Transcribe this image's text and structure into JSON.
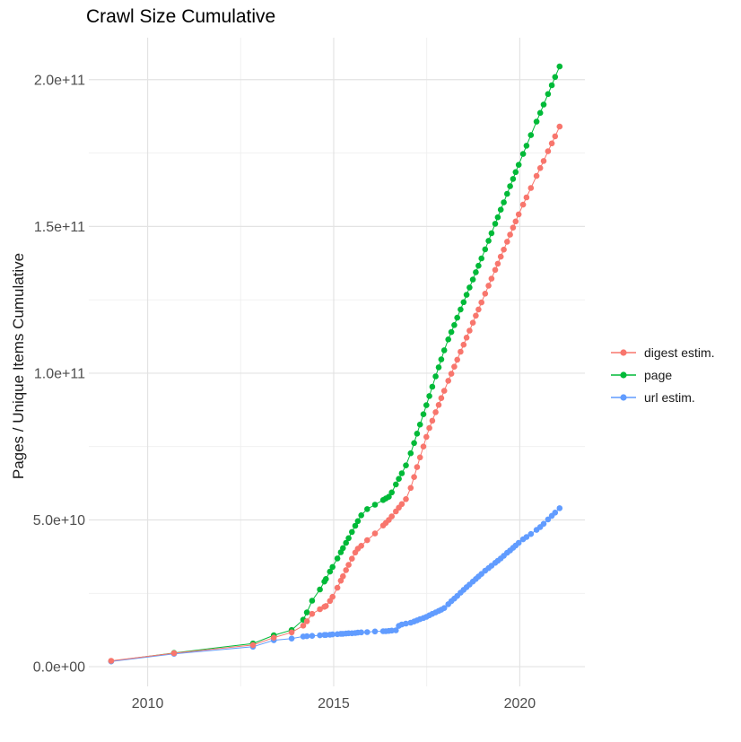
{
  "title": "Crawl Size Cumulative",
  "axes": {
    "y_title": "Pages / Unique Items Cumulative",
    "y_ticks": [
      {
        "label": "0.0e+00",
        "value": 0
      },
      {
        "label": "5.0e+10",
        "value": 50
      },
      {
        "label": "1.0e+11",
        "value": 100
      },
      {
        "label": "1.5e+11",
        "value": 150
      },
      {
        "label": "2.0e+11",
        "value": 200
      }
    ],
    "y_minor": [
      25,
      75,
      125,
      175
    ],
    "x_ticks": [
      {
        "label": "2010",
        "value": 2010
      },
      {
        "label": "2015",
        "value": 2015
      },
      {
        "label": "2020",
        "value": 2020
      }
    ],
    "x_minor": [
      2012.5,
      2017.5
    ]
  },
  "legend": {
    "items": [
      {
        "label": "digest estim.",
        "color": "#F8766D"
      },
      {
        "label": "page",
        "color": "#00BA38"
      },
      {
        "label": "url estim.",
        "color": "#619CFF"
      }
    ]
  },
  "chart_data": {
    "type": "line",
    "marker": "point",
    "title": "Crawl Size Cumulative",
    "xlabel": "",
    "ylabel": "Pages / Unique Items Cumulative",
    "x_unit": "year (decimal)",
    "value_unit": "items × 1e9",
    "xlim": [
      2008.42,
      2021.75
    ],
    "ylim": [
      -6.7,
      214.3
    ],
    "grid": true,
    "legend_position": "right",
    "series": [
      {
        "name": "digest estim.",
        "color": "#F8766D",
        "points": [
          [
            2009.02,
            2.0
          ],
          [
            2010.71,
            4.6
          ],
          [
            2012.83,
            7.4
          ],
          [
            2013.39,
            9.9
          ],
          [
            2013.87,
            11.7
          ],
          [
            2014.18,
            14.0
          ],
          [
            2014.28,
            15.5
          ],
          [
            2014.42,
            18.0
          ],
          [
            2014.63,
            19.6
          ],
          [
            2014.75,
            20.4
          ],
          [
            2014.79,
            20.7
          ],
          [
            2014.9,
            22.4
          ],
          [
            2014.97,
            23.8
          ],
          [
            2015.1,
            26.9
          ],
          [
            2015.19,
            29.3
          ],
          [
            2015.25,
            30.8
          ],
          [
            2015.33,
            32.9
          ],
          [
            2015.4,
            34.7
          ],
          [
            2015.49,
            36.8
          ],
          [
            2015.58,
            38.9
          ],
          [
            2015.65,
            40.2
          ],
          [
            2015.74,
            41.2
          ],
          [
            2015.9,
            43.1
          ],
          [
            2016.11,
            45.4
          ],
          [
            2016.33,
            48.1
          ],
          [
            2016.4,
            49.0
          ],
          [
            2016.48,
            50.0
          ],
          [
            2016.56,
            51.2
          ],
          [
            2016.67,
            52.9
          ],
          [
            2016.75,
            54.2
          ],
          [
            2016.83,
            55.4
          ],
          [
            2016.94,
            57.1
          ],
          [
            2017.07,
            60.9
          ],
          [
            2017.16,
            64.6
          ],
          [
            2017.24,
            68.0
          ],
          [
            2017.32,
            71.3
          ],
          [
            2017.41,
            75.0
          ],
          [
            2017.49,
            78.3
          ],
          [
            2017.57,
            81.3
          ],
          [
            2017.65,
            83.8
          ],
          [
            2017.74,
            86.7
          ],
          [
            2017.82,
            89.2
          ],
          [
            2017.89,
            91.5
          ],
          [
            2017.97,
            94.0
          ],
          [
            2018.08,
            97.4
          ],
          [
            2018.16,
            99.8
          ],
          [
            2018.24,
            102.2
          ],
          [
            2018.32,
            104.6
          ],
          [
            2018.41,
            107.3
          ],
          [
            2018.49,
            109.7
          ],
          [
            2018.57,
            112.1
          ],
          [
            2018.65,
            114.5
          ],
          [
            2018.74,
            117.2
          ],
          [
            2018.82,
            119.6
          ],
          [
            2018.89,
            121.7
          ],
          [
            2018.97,
            124.1
          ],
          [
            2019.07,
            127.1
          ],
          [
            2019.16,
            129.8
          ],
          [
            2019.24,
            132.2
          ],
          [
            2019.34,
            135.2
          ],
          [
            2019.41,
            137.3
          ],
          [
            2019.49,
            139.7
          ],
          [
            2019.57,
            142.1
          ],
          [
            2019.66,
            144.8
          ],
          [
            2019.74,
            147.2
          ],
          [
            2019.82,
            149.6
          ],
          [
            2019.89,
            151.7
          ],
          [
            2019.97,
            154.1
          ],
          [
            2020.09,
            157.4
          ],
          [
            2020.18,
            159.9
          ],
          [
            2020.3,
            163.1
          ],
          [
            2020.45,
            167.2
          ],
          [
            2020.55,
            169.9
          ],
          [
            2020.64,
            172.3
          ],
          [
            2020.76,
            175.6
          ],
          [
            2020.86,
            178.3
          ],
          [
            2020.95,
            180.7
          ],
          [
            2021.07,
            184.0
          ]
        ]
      },
      {
        "name": "page",
        "color": "#00BA38",
        "points": [
          [
            2009.02,
            1.9
          ],
          [
            2010.71,
            4.7
          ],
          [
            2012.83,
            7.9
          ],
          [
            2013.39,
            10.7
          ],
          [
            2013.87,
            12.5
          ],
          [
            2014.18,
            16.0
          ],
          [
            2014.28,
            18.5
          ],
          [
            2014.42,
            22.5
          ],
          [
            2014.63,
            26.3
          ],
          [
            2014.75,
            29.0
          ],
          [
            2014.79,
            29.9
          ],
          [
            2014.9,
            32.4
          ],
          [
            2014.97,
            34.0
          ],
          [
            2015.1,
            36.9
          ],
          [
            2015.19,
            39.0
          ],
          [
            2015.25,
            40.4
          ],
          [
            2015.33,
            42.2
          ],
          [
            2015.4,
            43.8
          ],
          [
            2015.49,
            45.9
          ],
          [
            2015.58,
            48.0
          ],
          [
            2015.65,
            49.6
          ],
          [
            2015.74,
            51.6
          ],
          [
            2015.9,
            53.7
          ],
          [
            2016.11,
            55.2
          ],
          [
            2016.33,
            56.8
          ],
          [
            2016.4,
            57.3
          ],
          [
            2016.48,
            57.9
          ],
          [
            2016.56,
            59.4
          ],
          [
            2016.67,
            62.1
          ],
          [
            2016.75,
            64.0
          ],
          [
            2016.83,
            65.9
          ],
          [
            2016.94,
            68.6
          ],
          [
            2017.07,
            72.7
          ],
          [
            2017.16,
            76.2
          ],
          [
            2017.24,
            79.4
          ],
          [
            2017.32,
            82.5
          ],
          [
            2017.41,
            86.0
          ],
          [
            2017.49,
            89.1
          ],
          [
            2017.57,
            92.2
          ],
          [
            2017.65,
            95.4
          ],
          [
            2017.74,
            98.9
          ],
          [
            2017.82,
            102.0
          ],
          [
            2017.89,
            104.7
          ],
          [
            2017.97,
            107.8
          ],
          [
            2018.08,
            111.5
          ],
          [
            2018.16,
            114.0
          ],
          [
            2018.24,
            116.4
          ],
          [
            2018.32,
            118.9
          ],
          [
            2018.41,
            121.7
          ],
          [
            2018.49,
            124.2
          ],
          [
            2018.57,
            126.7
          ],
          [
            2018.65,
            129.2
          ],
          [
            2018.74,
            131.9
          ],
          [
            2018.82,
            134.4
          ],
          [
            2018.89,
            136.6
          ],
          [
            2018.97,
            139.1
          ],
          [
            2019.07,
            142.2
          ],
          [
            2019.16,
            145.1
          ],
          [
            2019.24,
            147.7
          ],
          [
            2019.34,
            150.9
          ],
          [
            2019.41,
            153.1
          ],
          [
            2019.49,
            155.7
          ],
          [
            2019.57,
            158.2
          ],
          [
            2019.66,
            161.1
          ],
          [
            2019.74,
            163.7
          ],
          [
            2019.82,
            166.2
          ],
          [
            2019.89,
            168.5
          ],
          [
            2019.97,
            171.0
          ],
          [
            2020.09,
            174.7
          ],
          [
            2020.18,
            177.5
          ],
          [
            2020.3,
            181.1
          ],
          [
            2020.45,
            185.7
          ],
          [
            2020.55,
            188.7
          ],
          [
            2020.64,
            191.5
          ],
          [
            2020.76,
            195.1
          ],
          [
            2020.86,
            198.1
          ],
          [
            2020.95,
            200.9
          ],
          [
            2021.07,
            204.5
          ]
        ]
      },
      {
        "name": "url estim.",
        "color": "#619CFF",
        "points": [
          [
            2009.02,
            1.8
          ],
          [
            2010.71,
            4.4
          ],
          [
            2012.83,
            6.8
          ],
          [
            2013.39,
            9.0
          ],
          [
            2013.87,
            9.6
          ],
          [
            2014.18,
            10.3
          ],
          [
            2014.28,
            10.4
          ],
          [
            2014.42,
            10.5
          ],
          [
            2014.63,
            10.7
          ],
          [
            2014.75,
            10.8
          ],
          [
            2014.79,
            10.8
          ],
          [
            2014.9,
            10.9
          ],
          [
            2014.97,
            11.0
          ],
          [
            2015.1,
            11.1
          ],
          [
            2015.19,
            11.2
          ],
          [
            2015.25,
            11.2
          ],
          [
            2015.33,
            11.3
          ],
          [
            2015.4,
            11.4
          ],
          [
            2015.49,
            11.4
          ],
          [
            2015.58,
            11.5
          ],
          [
            2015.65,
            11.6
          ],
          [
            2015.74,
            11.7
          ],
          [
            2015.9,
            11.8
          ],
          [
            2016.11,
            12.0
          ],
          [
            2016.33,
            12.1
          ],
          [
            2016.4,
            12.1
          ],
          [
            2016.48,
            12.2
          ],
          [
            2016.56,
            12.3
          ],
          [
            2016.67,
            12.4
          ],
          [
            2016.75,
            13.9
          ],
          [
            2016.83,
            14.4
          ],
          [
            2016.94,
            14.7
          ],
          [
            2017.07,
            15.0
          ],
          [
            2017.16,
            15.4
          ],
          [
            2017.24,
            15.8
          ],
          [
            2017.32,
            16.2
          ],
          [
            2017.41,
            16.6
          ],
          [
            2017.49,
            17.0
          ],
          [
            2017.57,
            17.5
          ],
          [
            2017.65,
            18.0
          ],
          [
            2017.74,
            18.5
          ],
          [
            2017.82,
            19.0
          ],
          [
            2017.89,
            19.4
          ],
          [
            2017.97,
            20.0
          ],
          [
            2018.08,
            21.3
          ],
          [
            2018.16,
            22.3
          ],
          [
            2018.24,
            23.2
          ],
          [
            2018.32,
            24.1
          ],
          [
            2018.41,
            25.2
          ],
          [
            2018.49,
            26.2
          ],
          [
            2018.57,
            27.1
          ],
          [
            2018.65,
            28.0
          ],
          [
            2018.74,
            29.0
          ],
          [
            2018.82,
            29.9
          ],
          [
            2018.89,
            30.7
          ],
          [
            2018.97,
            31.6
          ],
          [
            2019.07,
            32.7
          ],
          [
            2019.16,
            33.6
          ],
          [
            2019.24,
            34.4
          ],
          [
            2019.34,
            35.4
          ],
          [
            2019.41,
            36.1
          ],
          [
            2019.49,
            36.9
          ],
          [
            2019.57,
            37.8
          ],
          [
            2019.66,
            38.8
          ],
          [
            2019.74,
            39.6
          ],
          [
            2019.82,
            40.5
          ],
          [
            2019.89,
            41.3
          ],
          [
            2019.97,
            42.2
          ],
          [
            2020.09,
            43.4
          ],
          [
            2020.18,
            44.2
          ],
          [
            2020.3,
            45.2
          ],
          [
            2020.45,
            46.6
          ],
          [
            2020.55,
            47.6
          ],
          [
            2020.64,
            48.7
          ],
          [
            2020.76,
            50.2
          ],
          [
            2020.86,
            51.4
          ],
          [
            2020.95,
            52.5
          ],
          [
            2021.07,
            54.0
          ]
        ]
      }
    ]
  }
}
